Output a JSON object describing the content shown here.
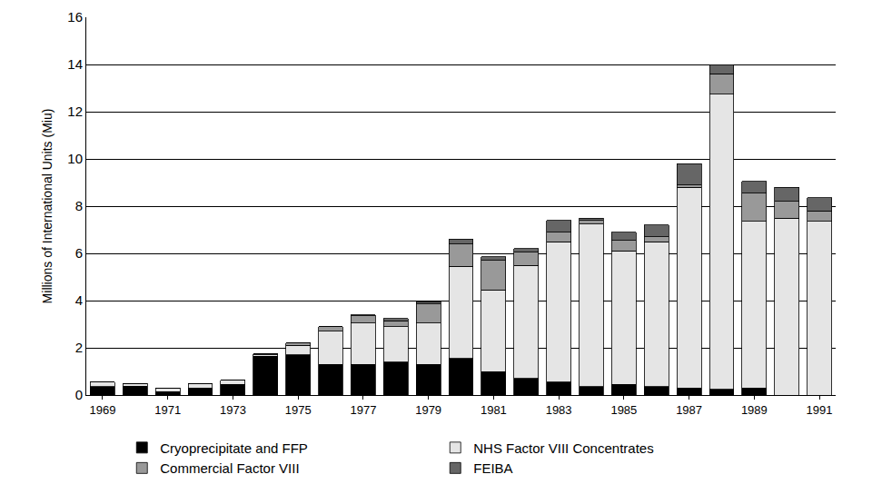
{
  "chart_data": {
    "type": "bar",
    "stacked": true,
    "grid": true,
    "legend": "bottom",
    "ylabel": "Millions of International Units (Miu)",
    "categories": [
      "1969",
      null,
      "1971",
      null,
      "1973",
      null,
      "1975",
      null,
      "1977",
      null,
      "1979",
      null,
      "1981",
      null,
      "1983",
      null,
      "1985",
      null,
      "1987",
      null,
      "1989",
      null,
      "1991"
    ],
    "ylim": [
      0,
      16
    ],
    "yticks": [
      0,
      2,
      4,
      6,
      8,
      10,
      12,
      14,
      16
    ],
    "series": [
      {
        "name": "Cryoprecipitate and FFP",
        "color": "#000000",
        "values": [
          0.35,
          0.38,
          0.15,
          0.3,
          0.45,
          1.65,
          1.7,
          1.3,
          1.3,
          1.4,
          1.3,
          1.55,
          1.0,
          0.7,
          0.55,
          0.35,
          0.45,
          0.35,
          0.3,
          0.25,
          0.3,
          0,
          0
        ]
      },
      {
        "name": "NHS Factor VIII Concentrates",
        "color": "#e5e5e5",
        "values": [
          0.2,
          0.12,
          0.15,
          0.2,
          0.17,
          0.05,
          0.4,
          1.4,
          1.75,
          1.5,
          1.75,
          3.9,
          3.45,
          4.8,
          5.95,
          6.9,
          5.65,
          6.15,
          8.5,
          12.5,
          7.05,
          7.5,
          7.35
        ]
      },
      {
        "name": "Commercial Factor VIII",
        "color": "#999999",
        "values": [
          0,
          0,
          0,
          0,
          0,
          0.05,
          0.1,
          0.2,
          0.3,
          0.25,
          0.8,
          0.95,
          1.25,
          0.55,
          0.4,
          0.15,
          0.45,
          0.2,
          0.1,
          0.85,
          1.2,
          0.7,
          0.45
        ]
      },
      {
        "name": "FEIBA",
        "color": "#666666",
        "values": [
          0,
          0,
          0,
          0,
          0,
          0,
          0,
          0,
          0.05,
          0.1,
          0.1,
          0.2,
          0.15,
          0.15,
          0.5,
          0.1,
          0.35,
          0.5,
          0.9,
          0.4,
          0.5,
          0.6,
          0.55
        ]
      }
    ]
  }
}
